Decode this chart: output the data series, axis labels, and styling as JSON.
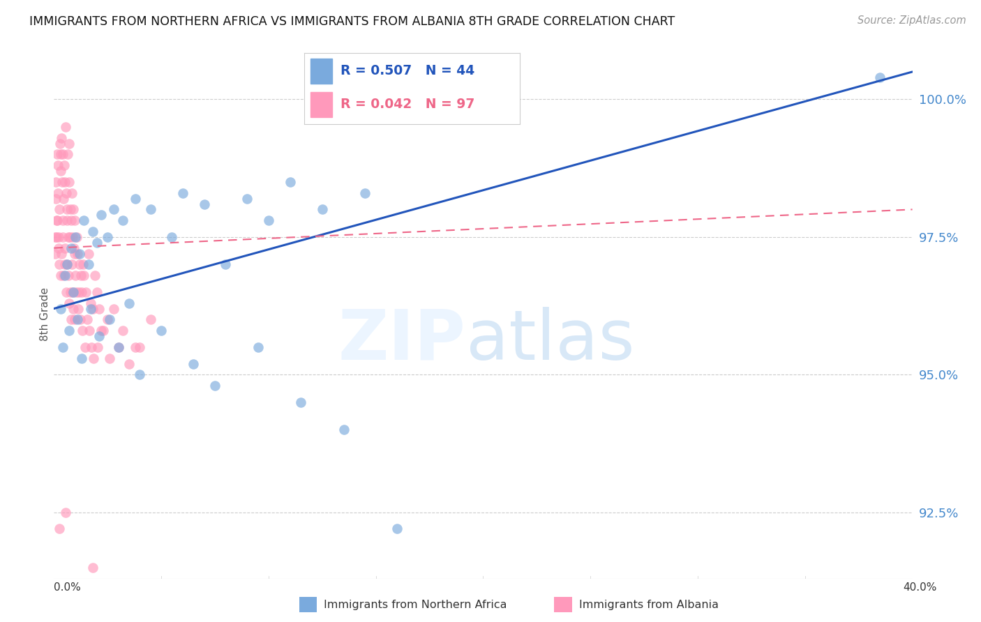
{
  "title": "IMMIGRANTS FROM NORTHERN AFRICA VS IMMIGRANTS FROM ALBANIA 8TH GRADE CORRELATION CHART",
  "source": "Source: ZipAtlas.com",
  "ylabel": "8th Grade",
  "xmin": 0.0,
  "xmax": 40.0,
  "ymin": 91.3,
  "ymax": 100.9,
  "yticks": [
    92.5,
    95.0,
    97.5,
    100.0
  ],
  "ytick_labels": [
    "92.5%",
    "95.0%",
    "97.5%",
    "100.0%"
  ],
  "blue_R": 0.507,
  "blue_N": 44,
  "pink_R": 0.042,
  "pink_N": 97,
  "blue_color": "#7AAADD",
  "pink_color": "#FF99BB",
  "blue_line_color": "#2255BB",
  "pink_line_color": "#EE6688",
  "legend_label_blue": "Immigrants from Northern Africa",
  "legend_label_pink": "Immigrants from Albania",
  "blue_scatter_x": [
    0.3,
    0.5,
    0.6,
    0.8,
    0.9,
    1.0,
    1.2,
    1.4,
    1.6,
    1.8,
    2.0,
    2.2,
    2.5,
    2.8,
    3.2,
    3.8,
    4.5,
    5.5,
    6.0,
    7.0,
    8.0,
    9.0,
    10.0,
    11.0,
    12.5,
    14.5,
    0.4,
    0.7,
    1.1,
    1.3,
    1.7,
    2.1,
    2.6,
    3.0,
    3.5,
    4.0,
    5.0,
    6.5,
    7.5,
    9.5,
    11.5,
    13.5,
    16.0,
    38.5
  ],
  "blue_scatter_y": [
    96.2,
    96.8,
    97.0,
    97.3,
    96.5,
    97.5,
    97.2,
    97.8,
    97.0,
    97.6,
    97.4,
    97.9,
    97.5,
    98.0,
    97.8,
    98.2,
    98.0,
    97.5,
    98.3,
    98.1,
    97.0,
    98.2,
    97.8,
    98.5,
    98.0,
    98.3,
    95.5,
    95.8,
    96.0,
    95.3,
    96.2,
    95.7,
    96.0,
    95.5,
    96.3,
    95.0,
    95.8,
    95.2,
    94.8,
    95.5,
    94.5,
    94.0,
    92.2,
    100.4
  ],
  "pink_scatter_x": [
    0.05,
    0.08,
    0.1,
    0.12,
    0.15,
    0.18,
    0.2,
    0.22,
    0.25,
    0.28,
    0.3,
    0.32,
    0.35,
    0.38,
    0.4,
    0.42,
    0.45,
    0.48,
    0.5,
    0.52,
    0.55,
    0.58,
    0.6,
    0.62,
    0.65,
    0.68,
    0.7,
    0.72,
    0.75,
    0.78,
    0.8,
    0.82,
    0.85,
    0.88,
    0.9,
    0.92,
    0.95,
    0.98,
    1.0,
    1.05,
    1.1,
    1.15,
    1.2,
    1.25,
    1.3,
    1.35,
    1.4,
    1.5,
    1.6,
    1.7,
    1.8,
    1.9,
    2.0,
    2.1,
    2.2,
    2.5,
    2.8,
    3.2,
    3.8,
    4.5,
    0.06,
    0.11,
    0.16,
    0.21,
    0.26,
    0.31,
    0.36,
    0.41,
    0.46,
    0.51,
    0.56,
    0.61,
    0.66,
    0.71,
    0.76,
    0.81,
    0.86,
    0.91,
    0.96,
    1.02,
    1.12,
    1.22,
    1.32,
    1.45,
    1.55,
    1.65,
    1.75,
    1.85,
    2.05,
    2.3,
    2.6,
    3.0,
    3.5,
    4.0,
    0.25,
    0.55,
    1.8
  ],
  "pink_scatter_y": [
    97.5,
    98.2,
    98.5,
    97.8,
    99.0,
    98.8,
    98.3,
    97.5,
    98.0,
    99.2,
    99.0,
    98.7,
    99.3,
    98.5,
    97.8,
    99.0,
    98.2,
    98.8,
    97.3,
    98.5,
    99.5,
    98.3,
    97.8,
    98.0,
    99.0,
    97.5,
    98.5,
    99.2,
    97.5,
    98.0,
    97.8,
    98.3,
    97.0,
    97.5,
    98.0,
    97.3,
    97.8,
    97.2,
    96.8,
    97.5,
    97.2,
    96.5,
    97.0,
    96.8,
    96.5,
    97.0,
    96.8,
    96.5,
    97.2,
    96.3,
    96.2,
    96.8,
    96.5,
    96.2,
    95.8,
    96.0,
    96.2,
    95.8,
    95.5,
    96.0,
    97.2,
    97.5,
    97.8,
    97.3,
    97.0,
    96.8,
    97.2,
    97.5,
    96.8,
    97.0,
    96.5,
    97.0,
    96.8,
    96.3,
    96.5,
    96.0,
    96.5,
    96.2,
    96.0,
    96.5,
    96.2,
    96.0,
    95.8,
    95.5,
    96.0,
    95.8,
    95.5,
    95.3,
    95.5,
    95.8,
    95.3,
    95.5,
    95.2,
    95.5,
    92.2,
    92.5,
    91.5
  ],
  "blue_trend_x0": 0.0,
  "blue_trend_y0": 96.2,
  "blue_trend_x1": 40.0,
  "blue_trend_y1": 100.5,
  "pink_trend_x0": 0.0,
  "pink_trend_y0": 97.3,
  "pink_trend_x1": 40.0,
  "pink_trend_y1": 98.0
}
